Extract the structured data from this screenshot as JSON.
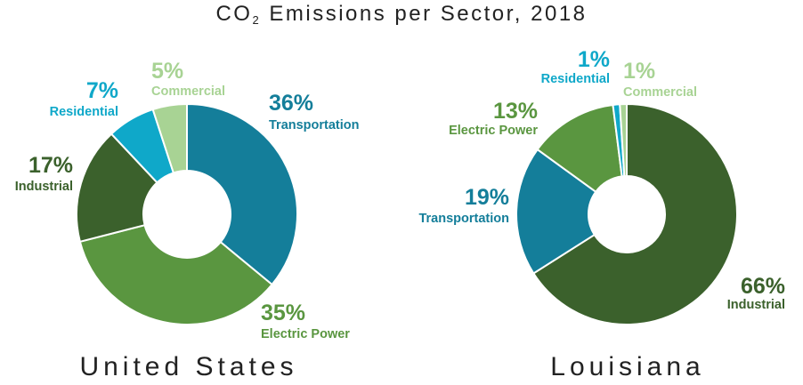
{
  "title": "CO",
  "title_subscript": "2",
  "title_rest": " Emissions per Sector, 2018",
  "colors": {
    "Transportation": "#147e9a",
    "Electric Power": "#5a9640",
    "Industrial": "#3b612c",
    "Residential": "#0fa8c9",
    "Commercial": "#a8d394"
  },
  "chart_data": [
    {
      "type": "pie",
      "title": "United States",
      "donut": true,
      "series": [
        {
          "name": "Transportation",
          "value": 36,
          "label": "36%"
        },
        {
          "name": "Electric Power",
          "value": 35,
          "label": "35%"
        },
        {
          "name": "Industrial",
          "value": 17,
          "label": "17%"
        },
        {
          "name": "Residential",
          "value": 7,
          "label": "7%"
        },
        {
          "name": "Commercial",
          "value": 5,
          "label": "5%"
        }
      ]
    },
    {
      "type": "pie",
      "title": "Louisiana",
      "donut": true,
      "series": [
        {
          "name": "Industrial",
          "value": 66,
          "label": "66%"
        },
        {
          "name": "Transportation",
          "value": 19,
          "label": "19%"
        },
        {
          "name": "Electric Power",
          "value": 13,
          "label": "13%"
        },
        {
          "name": "Residential",
          "value": 1,
          "label": "1%"
        },
        {
          "name": "Commercial",
          "value": 1,
          "label": "1%"
        }
      ]
    }
  ]
}
